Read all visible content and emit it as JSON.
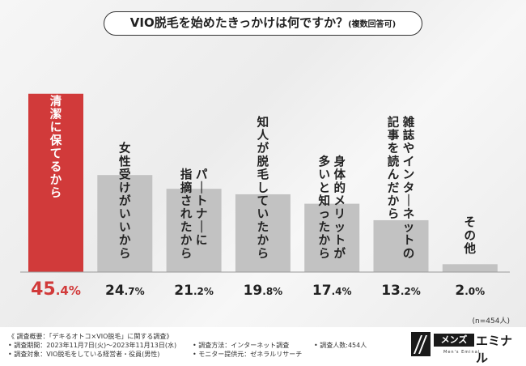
{
  "title": {
    "main": "VIO脱毛を始めたきっかけは何ですか？",
    "sub": "(複数回答可)"
  },
  "colors": {
    "highlight_bar": "#d13a3a",
    "normal_bar": "#c2c2c2",
    "highlight_label": "#d13a3a",
    "normal_label": "#222222"
  },
  "chart_data": {
    "type": "bar",
    "categories": [
      "清潔に保てるから",
      "女性受けがいいから",
      "パートナーに指摘されたから",
      "知人が脱毛していたから",
      "身体的メリットが多いと知ったから",
      "雑誌やインターネットの記事を読んだから",
      "その他"
    ],
    "label_columns": [
      [
        "清潔に保てるから"
      ],
      [
        "女性受けがいいから"
      ],
      [
        "パートナーに",
        "指摘されたから"
      ],
      [
        "知人が脱毛していたから"
      ],
      [
        "身体的メリットが",
        "多いと知ったから"
      ],
      [
        "雑誌やインターネットの",
        "記事を読んだから"
      ],
      [
        "その他"
      ]
    ],
    "values": [
      45.4,
      24.7,
      21.2,
      19.8,
      17.4,
      13.2,
      2.0
    ],
    "value_labels": [
      {
        "int": "45",
        "dec": ".4",
        "unit": "%"
      },
      {
        "int": "24",
        "dec": ".7",
        "unit": "%"
      },
      {
        "int": "21",
        "dec": ".2",
        "unit": "%"
      },
      {
        "int": "19",
        "dec": ".8",
        "unit": "%"
      },
      {
        "int": "17",
        "dec": ".4",
        "unit": "%"
      },
      {
        "int": "13",
        "dec": ".2",
        "unit": "%"
      },
      {
        "int": "2",
        "dec": ".0",
        "unit": "%"
      }
    ],
    "highlight_index": 0,
    "ylim": [
      0,
      47
    ]
  },
  "sample_note": "(n=454人)",
  "footer": {
    "col1": [
      "《 調査概要：「デキるオトコ×VIO脱毛」に関する調査》",
      "• 調査期間：2023年11月7日(火)〜2023年11月13日(水)",
      "• 調査対象：VIO脱毛をしている経営者・役員(男性)"
    ],
    "col2": [
      "• 調査方法：インターネット調査",
      "• モニター提供元：ゼネラルリサーチ"
    ],
    "col3": [
      "• 調査人数:454人"
    ]
  },
  "logo": {
    "part1": "メンズ",
    "part2": "エミナル",
    "tagline": "Men's Eminal"
  }
}
